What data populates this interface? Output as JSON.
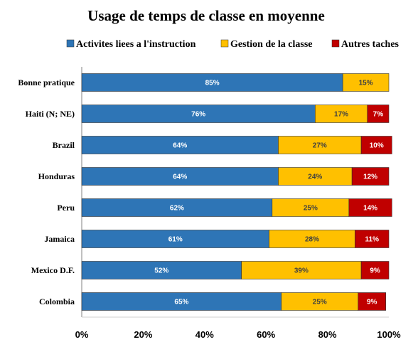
{
  "chart_data": {
    "type": "bar",
    "orientation": "horizontal",
    "stacked": true,
    "title": "Usage de temps de classe en moyenne",
    "categories": [
      "Bonne pratique",
      "Haiti (N; NE)",
      "Brazil",
      "Honduras",
      "Peru",
      "Jamaica",
      "Mexico D.F.",
      "Colombia"
    ],
    "series": [
      {
        "name": "Activites liees a l'instruction",
        "color": "#2e75b6",
        "label_color": "#ffffff",
        "values": [
          85,
          76,
          64,
          64,
          62,
          61,
          52,
          65
        ]
      },
      {
        "name": "Gestion de la classe",
        "color": "#ffc000",
        "label_color": "#404040",
        "values": [
          15,
          17,
          27,
          24,
          25,
          28,
          39,
          25
        ]
      },
      {
        "name": "Autres taches",
        "color": "#c00000",
        "label_color": "#ffffff",
        "values": [
          0,
          7,
          10,
          12,
          14,
          11,
          9,
          9
        ]
      }
    ],
    "value_suffix": "%",
    "xlim": [
      0,
      100
    ],
    "x_ticks": [
      "0%",
      "20%",
      "40%",
      "60%",
      "80%",
      "100%"
    ],
    "legend_position": "top",
    "grid": false
  }
}
